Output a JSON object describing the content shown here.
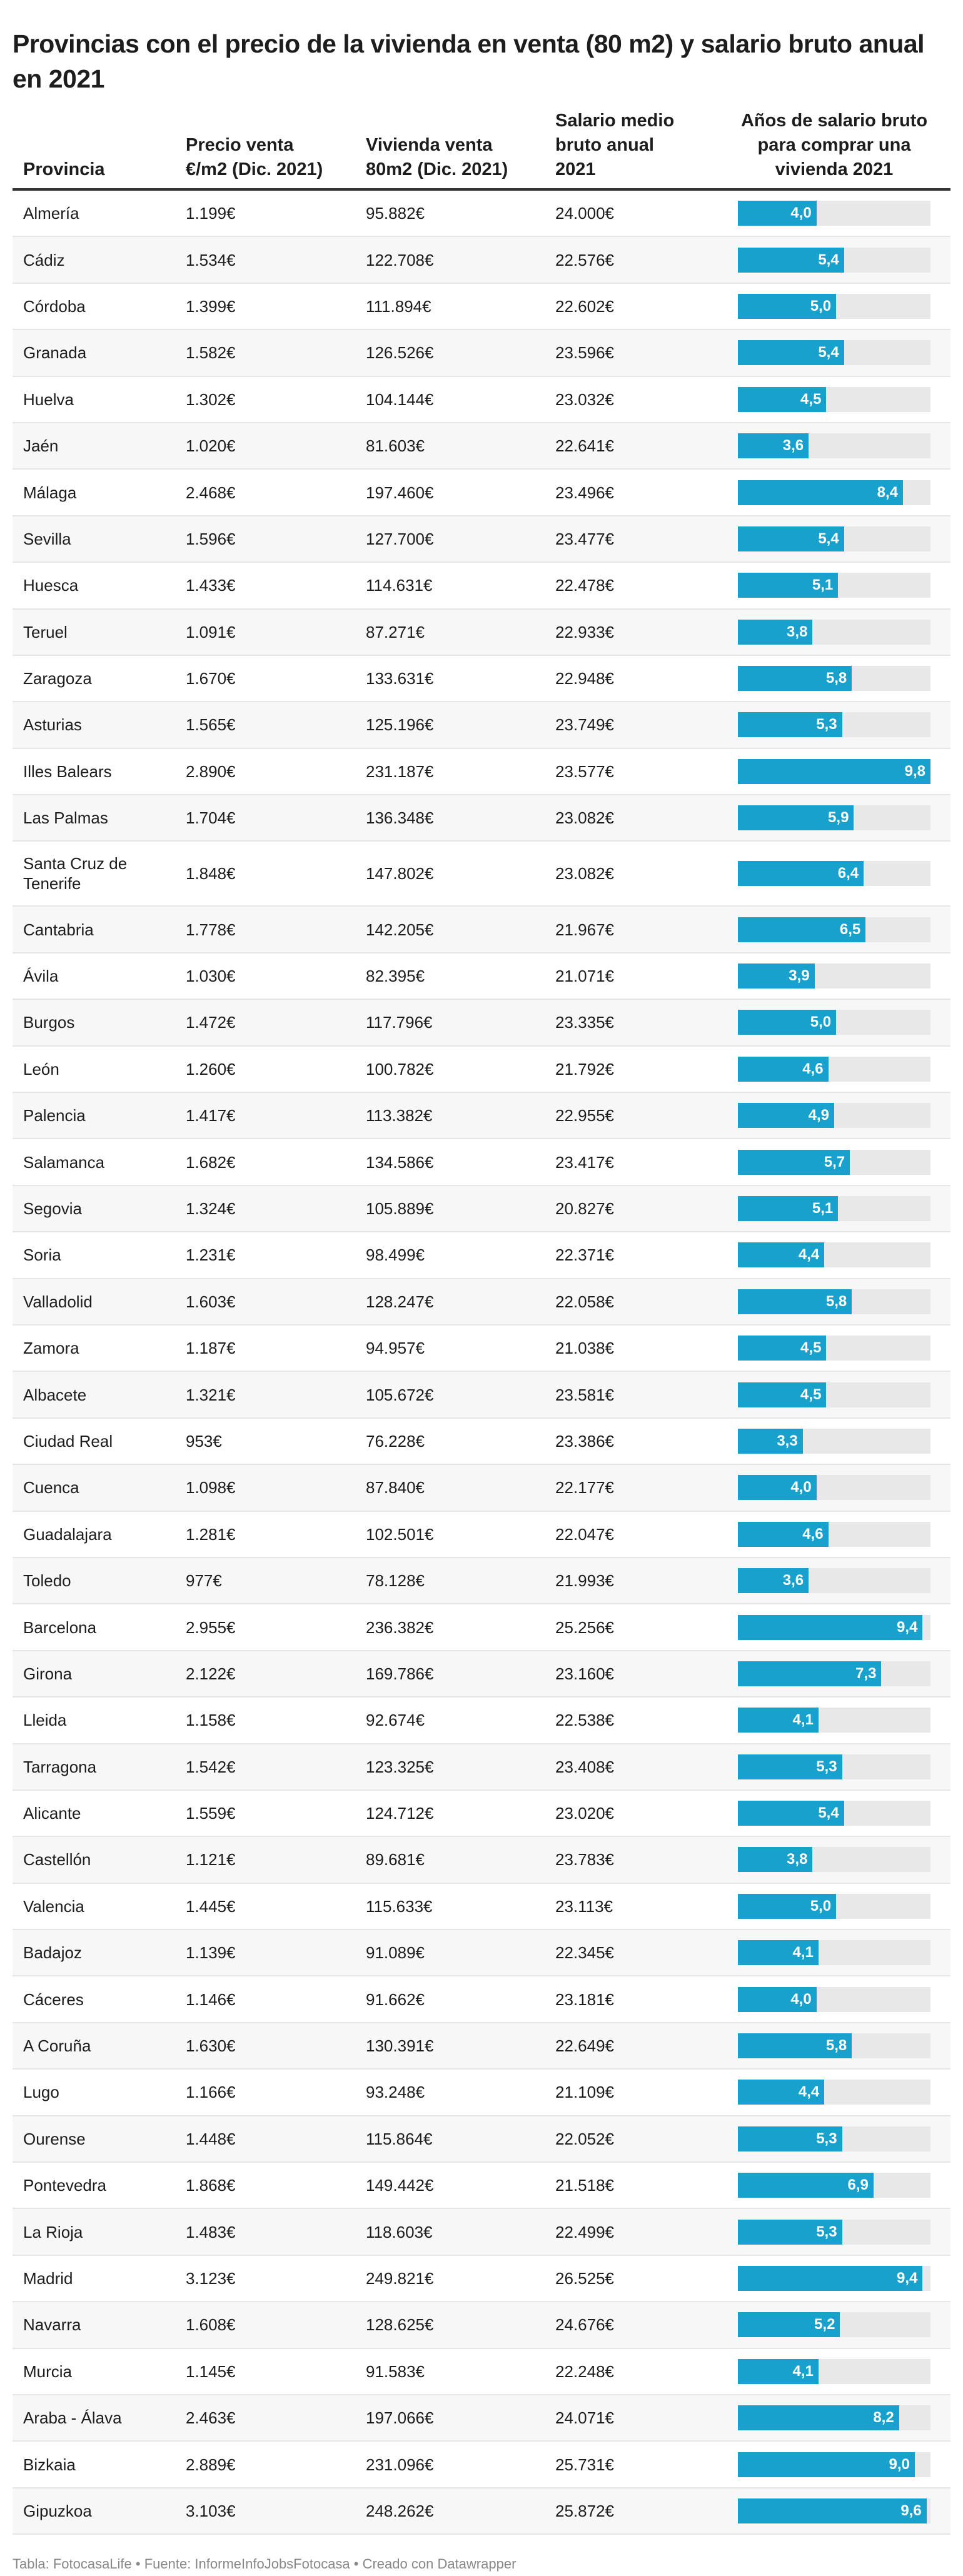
{
  "title": "Provincias con el precio de la vivienda en venta (80 m2) y salario bruto anual en 2021",
  "columns": [
    "Provincia",
    "Precio venta €/m2 (Dic. 2021)",
    "Vivienda venta 80m2 (Dic. 2021)",
    "Salario medio bruto anual 2021",
    "Años de salario bruto para comprar una vivienda 2021"
  ],
  "colors": {
    "bar": "#18a1cd",
    "bar_background": "#e8e8e8",
    "row_alt": "#f7f7f7"
  },
  "bar_max": 9.8,
  "rows": [
    [
      "Almería",
      "1.199€",
      "95.882€",
      "24.000€",
      "4,0"
    ],
    [
      "Cádiz",
      "1.534€",
      "122.708€",
      "22.576€",
      "5,4"
    ],
    [
      "Córdoba",
      "1.399€",
      "111.894€",
      "22.602€",
      "5,0"
    ],
    [
      "Granada",
      "1.582€",
      "126.526€",
      "23.596€",
      "5,4"
    ],
    [
      "Huelva",
      "1.302€",
      "104.144€",
      "23.032€",
      "4,5"
    ],
    [
      "Jaén",
      "1.020€",
      "81.603€",
      "22.641€",
      "3,6"
    ],
    [
      "Málaga",
      "2.468€",
      "197.460€",
      "23.496€",
      "8,4"
    ],
    [
      "Sevilla",
      "1.596€",
      "127.700€",
      "23.477€",
      "5,4"
    ],
    [
      "Huesca",
      "1.433€",
      "114.631€",
      "22.478€",
      "5,1"
    ],
    [
      "Teruel",
      "1.091€",
      "87.271€",
      "22.933€",
      "3,8"
    ],
    [
      "Zaragoza",
      "1.670€",
      "133.631€",
      "22.948€",
      "5,8"
    ],
    [
      "Asturias",
      "1.565€",
      "125.196€",
      "23.749€",
      "5,3"
    ],
    [
      "Illes Balears",
      "2.890€",
      "231.187€",
      "23.577€",
      "9,8"
    ],
    [
      "Las Palmas",
      "1.704€",
      "136.348€",
      "23.082€",
      "5,9"
    ],
    [
      "Santa Cruz de Tenerife",
      "1.848€",
      "147.802€",
      "23.082€",
      "6,4"
    ],
    [
      "Cantabria",
      "1.778€",
      "142.205€",
      "21.967€",
      "6,5"
    ],
    [
      "Ávila",
      "1.030€",
      "82.395€",
      "21.071€",
      "3,9"
    ],
    [
      "Burgos",
      "1.472€",
      "117.796€",
      "23.335€",
      "5,0"
    ],
    [
      "León",
      "1.260€",
      "100.782€",
      "21.792€",
      "4,6"
    ],
    [
      "Palencia",
      "1.417€",
      "113.382€",
      "22.955€",
      "4,9"
    ],
    [
      "Salamanca",
      "1.682€",
      "134.586€",
      "23.417€",
      "5,7"
    ],
    [
      "Segovia",
      "1.324€",
      "105.889€",
      "20.827€",
      "5,1"
    ],
    [
      "Soria",
      "1.231€",
      "98.499€",
      "22.371€",
      "4,4"
    ],
    [
      "Valladolid",
      "1.603€",
      "128.247€",
      "22.058€",
      "5,8"
    ],
    [
      "Zamora",
      "1.187€",
      "94.957€",
      "21.038€",
      "4,5"
    ],
    [
      "Albacete",
      "1.321€",
      "105.672€",
      "23.581€",
      "4,5"
    ],
    [
      "Ciudad Real",
      "953€",
      "76.228€",
      "23.386€",
      "3,3"
    ],
    [
      "Cuenca",
      "1.098€",
      "87.840€",
      "22.177€",
      "4,0"
    ],
    [
      "Guadalajara",
      "1.281€",
      "102.501€",
      "22.047€",
      "4,6"
    ],
    [
      "Toledo",
      "977€",
      "78.128€",
      "21.993€",
      "3,6"
    ],
    [
      "Barcelona",
      "2.955€",
      "236.382€",
      "25.256€",
      "9,4"
    ],
    [
      "Girona",
      "2.122€",
      "169.786€",
      "23.160€",
      "7,3"
    ],
    [
      "Lleida",
      "1.158€",
      "92.674€",
      "22.538€",
      "4,1"
    ],
    [
      "Tarragona",
      "1.542€",
      "123.325€",
      "23.408€",
      "5,3"
    ],
    [
      "Alicante",
      "1.559€",
      "124.712€",
      "23.020€",
      "5,4"
    ],
    [
      "Castellón",
      "1.121€",
      "89.681€",
      "23.783€",
      "3,8"
    ],
    [
      "Valencia",
      "1.445€",
      "115.633€",
      "23.113€",
      "5,0"
    ],
    [
      "Badajoz",
      "1.139€",
      "91.089€",
      "22.345€",
      "4,1"
    ],
    [
      "Cáceres",
      "1.146€",
      "91.662€",
      "23.181€",
      "4,0"
    ],
    [
      "A Coruña",
      "1.630€",
      "130.391€",
      "22.649€",
      "5,8"
    ],
    [
      "Lugo",
      "1.166€",
      "93.248€",
      "21.109€",
      "4,4"
    ],
    [
      "Ourense",
      "1.448€",
      "115.864€",
      "22.052€",
      "5,3"
    ],
    [
      "Pontevedra",
      "1.868€",
      "149.442€",
      "21.518€",
      "6,9"
    ],
    [
      "La Rioja",
      "1.483€",
      "118.603€",
      "22.499€",
      "5,3"
    ],
    [
      "Madrid",
      "3.123€",
      "249.821€",
      "26.525€",
      "9,4"
    ],
    [
      "Navarra",
      "1.608€",
      "128.625€",
      "24.676€",
      "5,2"
    ],
    [
      "Murcia",
      "1.145€",
      "91.583€",
      "22.248€",
      "4,1"
    ],
    [
      "Araba - Álava",
      "2.463€",
      "197.066€",
      "24.071€",
      "8,2"
    ],
    [
      "Bizkaia",
      "2.889€",
      "231.096€",
      "25.731€",
      "9,0"
    ],
    [
      "Gipuzkoa",
      "3.103€",
      "248.262€",
      "25.872€",
      "9,6"
    ]
  ],
  "footer": "Tabla: FotocasaLife • Fuente: InformeInfoJobsFotocasa • Creado con Datawrapper"
}
